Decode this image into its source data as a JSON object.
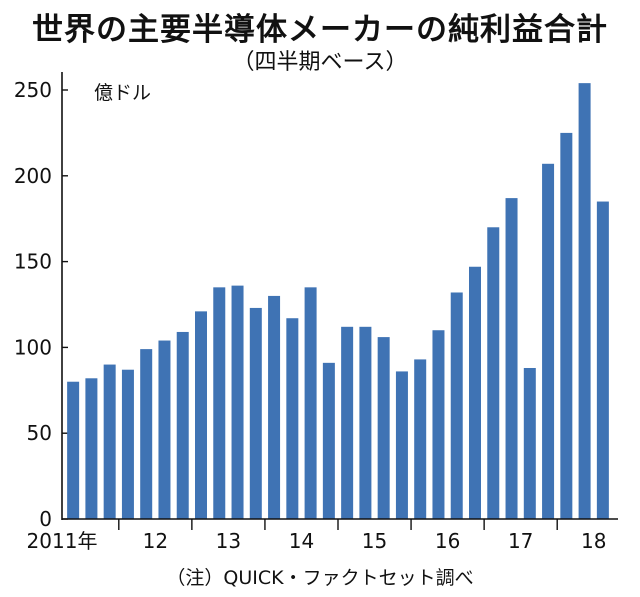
{
  "title": "世界の主要半導体メーカーの純利益合計",
  "subtitle": "（四半期ベース）",
  "footnote": "（注）QUICK・ファクトセット調べ",
  "chart_data": {
    "type": "bar",
    "unit_label": "億ドル",
    "ylim": [
      0,
      260
    ],
    "yticks": [
      0,
      50,
      100,
      150,
      200,
      250
    ],
    "bar_color": "#3f73b4",
    "values": [
      80,
      82,
      90,
      87,
      99,
      104,
      109,
      121,
      135,
      136,
      123,
      130,
      117,
      135,
      91,
      112,
      112,
      106,
      86,
      93,
      110,
      132,
      147,
      170,
      187,
      88,
      207,
      225,
      254,
      185
    ],
    "xtick_labels": [
      {
        "label": "2011年",
        "index": 1
      },
      {
        "label": "12",
        "index": 4
      },
      {
        "label": "13",
        "index": 8
      },
      {
        "label": "14",
        "index": 12
      },
      {
        "label": "15",
        "index": 16
      },
      {
        "label": "16",
        "index": 20
      },
      {
        "label": "17",
        "index": 24
      },
      {
        "label": "18",
        "index": 28
      }
    ],
    "year_separators_after_index": [
      2,
      6,
      10,
      14,
      18,
      22,
      26
    ]
  }
}
